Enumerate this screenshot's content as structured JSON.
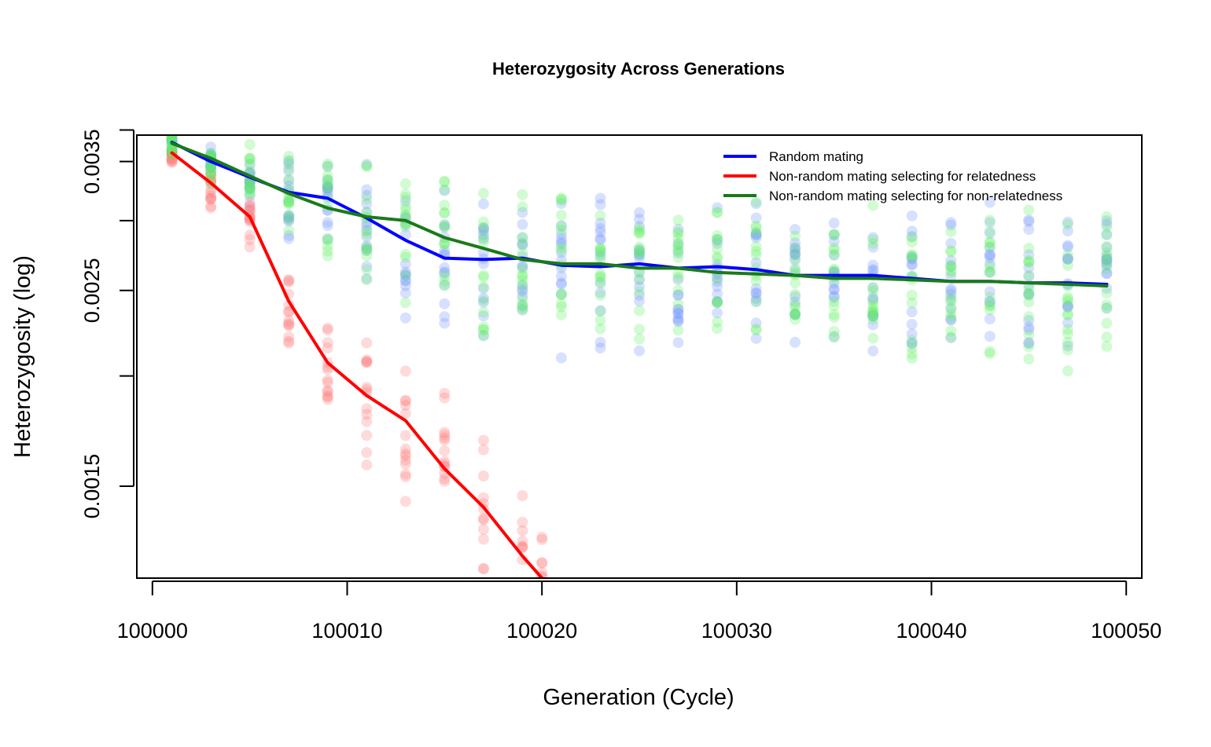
{
  "chart_data": {
    "type": "line",
    "title": "Heterozygosity Across Generations",
    "xlabel": "Generation (Cycle)",
    "ylabel": "Heterozygosity (log)",
    "xlim": [
      99999.2,
      100050.8
    ],
    "ylim": [
      0.00118,
      0.00375
    ],
    "y_scale": "log",
    "x_ticks": [
      100000,
      100010,
      100020,
      100030,
      100040,
      100050
    ],
    "x_tick_labels": [
      "100000",
      "100010",
      "100020",
      "100030",
      "100040",
      "100050"
    ],
    "y_ticks": [
      0.0015,
      0.002,
      0.0025,
      0.003,
      0.0035,
      0.0038
    ],
    "y_tick_labels": [
      "0.0015",
      "",
      "0.0025",
      "",
      "0.0035",
      ""
    ],
    "grid": false,
    "legend_position": "top-right",
    "series": [
      {
        "name": "Random mating",
        "color": "#0000ff",
        "x": [
          100001,
          100003,
          100005,
          100007,
          100009,
          100011,
          100013,
          100015,
          100017,
          100019,
          100021,
          100023,
          100025,
          100027,
          100029,
          100031,
          100033,
          100035,
          100037,
          100039,
          100041,
          100043,
          100045,
          100047,
          100049
        ],
        "values": [
          0.00368,
          0.0035,
          0.00336,
          0.00323,
          0.00318,
          0.00302,
          0.00285,
          0.00272,
          0.00271,
          0.00272,
          0.00267,
          0.00266,
          0.00268,
          0.00265,
          0.00266,
          0.00264,
          0.0026,
          0.0026,
          0.0026,
          0.00258,
          0.00256,
          0.00256,
          0.00255,
          0.00255,
          0.00254
        ]
      },
      {
        "name": "Non-random mating selecting for relatedness",
        "color": "#ff0000",
        "x": [
          100001,
          100003,
          100005,
          100007,
          100009,
          100011,
          100013,
          100015,
          100017,
          100019,
          100020
        ],
        "values": [
          0.00358,
          0.00331,
          0.00303,
          0.00243,
          0.00207,
          0.0019,
          0.00178,
          0.00157,
          0.00142,
          0.00125,
          0.00118
        ]
      },
      {
        "name": "Non-random mating selecting for non-relatedness",
        "color": "#1a7a1a",
        "x": [
          100001,
          100003,
          100005,
          100007,
          100009,
          100011,
          100013,
          100015,
          100017,
          100019,
          100021,
          100023,
          100025,
          100027,
          100029,
          100031,
          100033,
          100035,
          100037,
          100039,
          100041,
          100043,
          100045,
          100047,
          100049
        ],
        "values": [
          0.00367,
          0.00353,
          0.00337,
          0.00322,
          0.0031,
          0.00303,
          0.003,
          0.00287,
          0.00279,
          0.00271,
          0.00268,
          0.00268,
          0.00265,
          0.00265,
          0.00262,
          0.00261,
          0.0026,
          0.00258,
          0.00258,
          0.00257,
          0.00256,
          0.00256,
          0.00255,
          0.00254,
          0.00253
        ]
      }
    ]
  }
}
